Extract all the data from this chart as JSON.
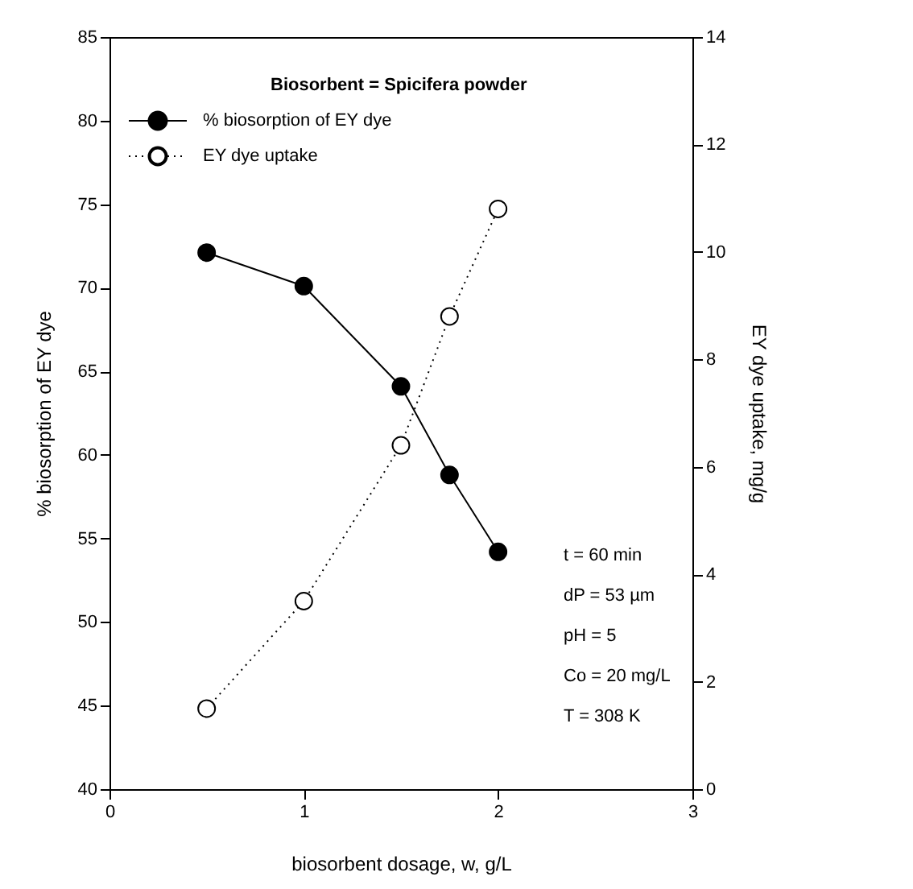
{
  "chart_data": {
    "type": "line",
    "legend_title": "Biosorbent = Spicifera  powder",
    "xlabel": "biosorbent dosage, w, g/L",
    "ylabel": "% biosorption of EY dye",
    "y2label": "EY dye uptake, mg/g",
    "x": [
      0.5,
      1,
      1.5,
      1.75,
      2
    ],
    "series": [
      {
        "name": "% biosorption of EY dye",
        "color": "#000000",
        "values": [
          72.1,
          70.1,
          64.1,
          58.8,
          54.2
        ],
        "line_style": "solid",
        "marker": "circle"
      },
      {
        "name": "EY dye uptake",
        "color": "#000000",
        "values": [
          1.5,
          3.5,
          6.4,
          8.8,
          10.8
        ],
        "line_style": "dotted",
        "marker": "circle",
        "axis": "y2"
      }
    ],
    "xlim": [
      0,
      3
    ],
    "xticks": [
      0,
      1,
      2,
      3
    ],
    "ylim": [
      40,
      85
    ],
    "yticks": [
      40,
      45,
      50,
      55,
      60,
      65,
      70,
      75,
      80,
      85
    ],
    "y2lim": [
      0,
      14
    ],
    "y2ticks": [
      0,
      2,
      4,
      6,
      8,
      10,
      12,
      14
    ],
    "grid": false,
    "legend": "top left",
    "annotations": [
      "t = 60 min",
      "dP = 53 µm",
      "pH = 5",
      "Co = 20 mg/L",
      "T = 308 K"
    ]
  }
}
